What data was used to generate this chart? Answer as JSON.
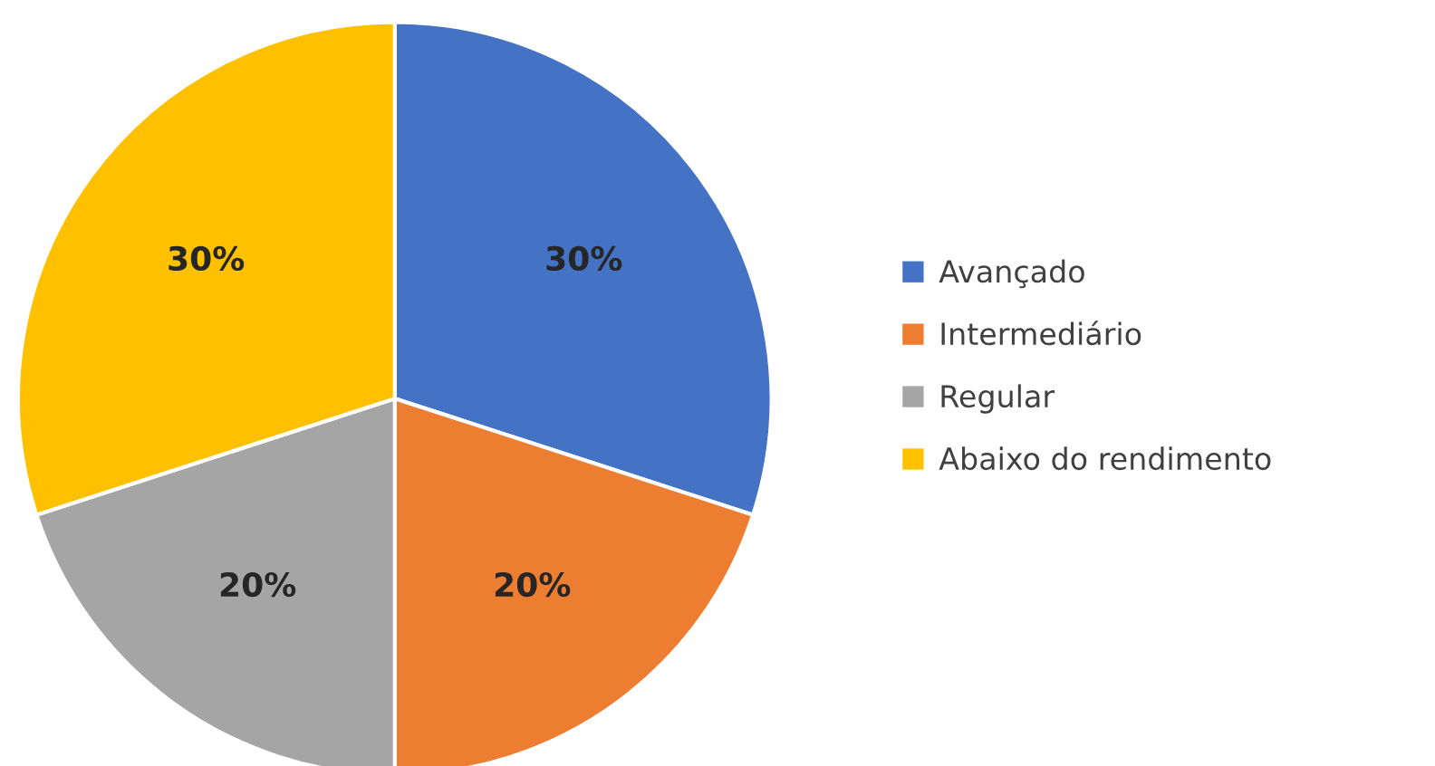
{
  "chart_data": {
    "type": "pie",
    "categories": [
      "Avançado",
      "Intermediário",
      "Regular",
      "Abaixo do rendimento"
    ],
    "values": [
      30,
      20,
      20,
      30
    ],
    "value_labels": [
      "30%",
      "20%",
      "20%",
      "30%"
    ],
    "colors": [
      "#4472c4",
      "#ed7d31",
      "#a5a5a5",
      "#ffc000"
    ],
    "legend": "right"
  }
}
